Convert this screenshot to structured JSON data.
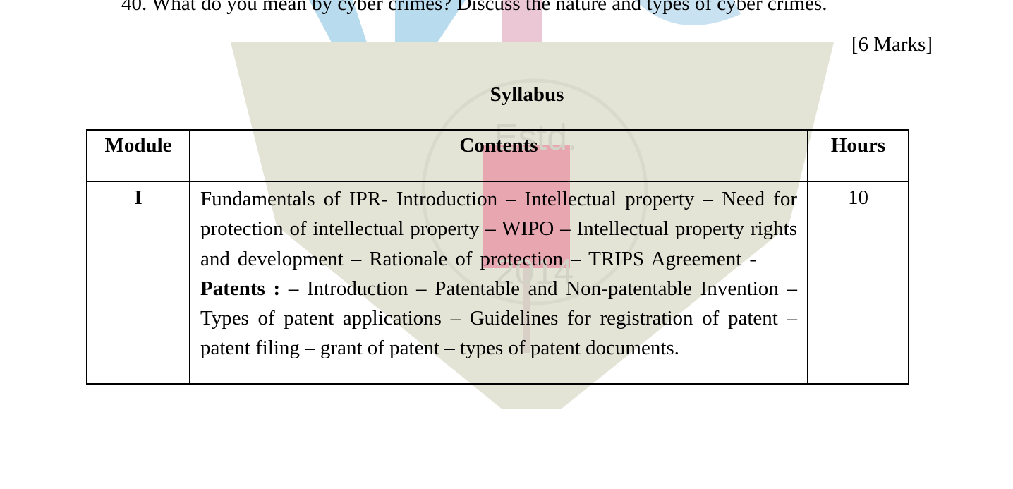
{
  "question": {
    "text": "40. What do you mean by cyber crimes? Discuss the nature and types of cyber crimes.",
    "marks": "[6 Marks]"
  },
  "syllabus": {
    "title": "Syllabus",
    "headers": {
      "module": "Module",
      "contents": "Contents",
      "hours": "Hours"
    },
    "rows": [
      {
        "module": "I",
        "hours": "10",
        "content_part1": "Fundamentals of IPR- Introduction – Intellectual property – Need for  protection of intellectual property – WIPO – Intellectual property rights  and development – Rationale of protection – TRIPS Agreement -",
        "content_bold": "Patents : –",
        "content_part2": " Introduction – Patentable and Non-patentable Invention – Types of  patent applications – Guidelines for registration of patent – patent filing  – grant of patent – types of patent documents."
      }
    ]
  },
  "watermark": {
    "text_top": "Estd.",
    "text_bottom": "2014",
    "colors": {
      "shield": "#e4e4d6",
      "blue": "#b9dbee",
      "pink": "#ebc6d4",
      "red": "#e8a6b0"
    }
  }
}
